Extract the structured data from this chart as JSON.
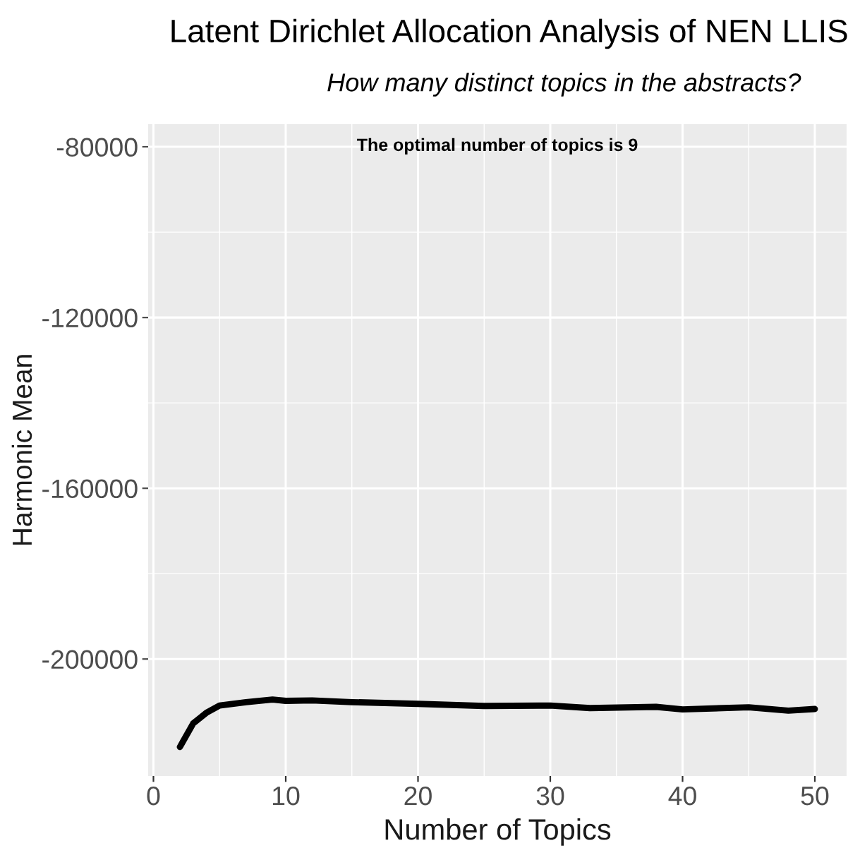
{
  "chart_data": {
    "type": "line",
    "title": "Latent Dirichlet Allocation Analysis of NEN LLIS",
    "subtitle": "How many distinct topics in the abstracts?",
    "xlabel": "Number of Topics",
    "ylabel": "Harmonic Mean",
    "annotations": [
      "The optimal number of topics is 9"
    ],
    "x": [
      2,
      3,
      4,
      5,
      7,
      9,
      10,
      12,
      15,
      20,
      25,
      30,
      33,
      38,
      40,
      45,
      48,
      50
    ],
    "series": [
      {
        "color": "#000000",
        "values": [
          -220600,
          -215100,
          -212600,
          -210900,
          -210100,
          -209500,
          -209800,
          -209700,
          -210100,
          -210500,
          -211000,
          -210900,
          -211500,
          -211200,
          -211800,
          -211300,
          -212100,
          -211700
        ]
      }
    ],
    "xlim": [
      -0.4,
      52.4
    ],
    "ylim": [
      -227400,
      -74700
    ],
    "xticks": [
      0,
      10,
      20,
      30,
      40,
      50
    ],
    "yticks": [
      -80000,
      -120000,
      -160000,
      -200000
    ],
    "grid": true,
    "legend": false,
    "marker": "none",
    "line_style": "solid"
  }
}
